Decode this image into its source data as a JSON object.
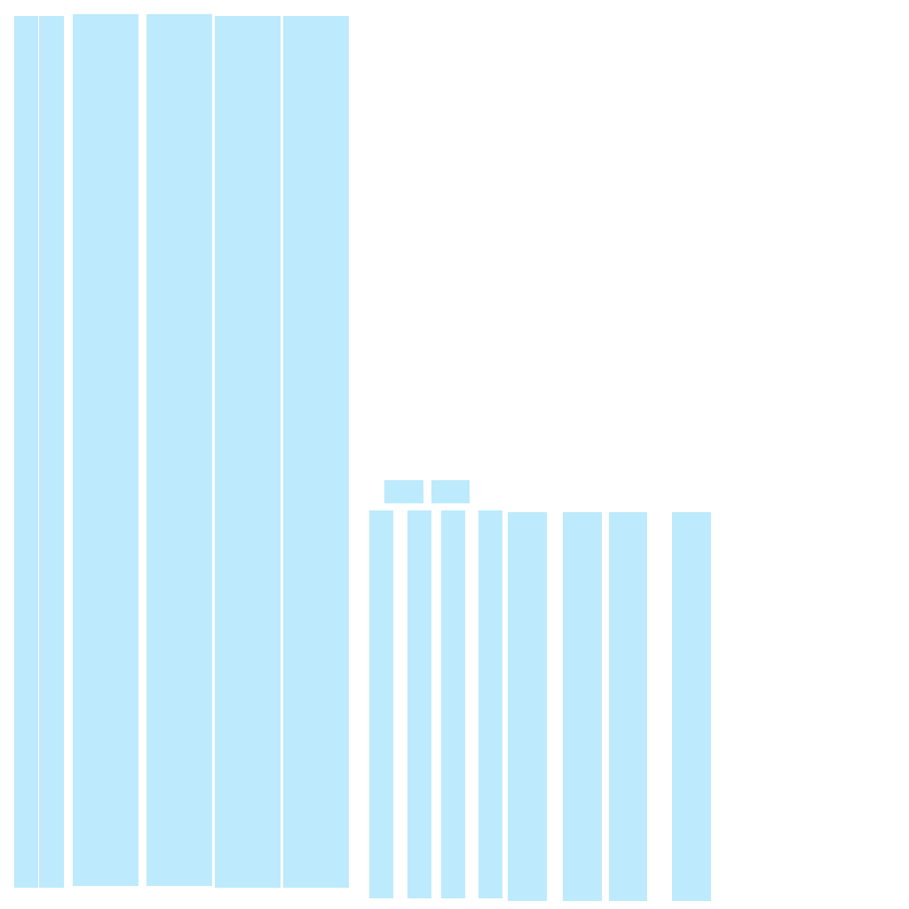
{
  "canvas": {
    "background": "#ffffff",
    "block_color": "#bdeafd"
  }
}
